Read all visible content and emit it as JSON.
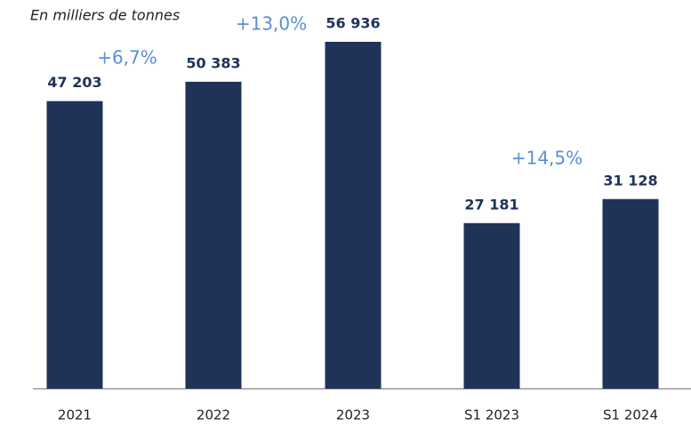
{
  "chart_data": {
    "type": "bar",
    "subtitle": "En milliers de tonnes",
    "categories": [
      "2021",
      "2022",
      "2023",
      "S1 2023",
      "S1 2024"
    ],
    "values": [
      47203,
      50383,
      56936,
      27181,
      31128
    ],
    "value_labels": [
      "47 203",
      "50 383",
      "56 936",
      "27 181",
      "31 128"
    ],
    "color": "#1f3359",
    "annotations": [
      "+6,7%",
      "+13,0%",
      "+14,5%"
    ]
  }
}
